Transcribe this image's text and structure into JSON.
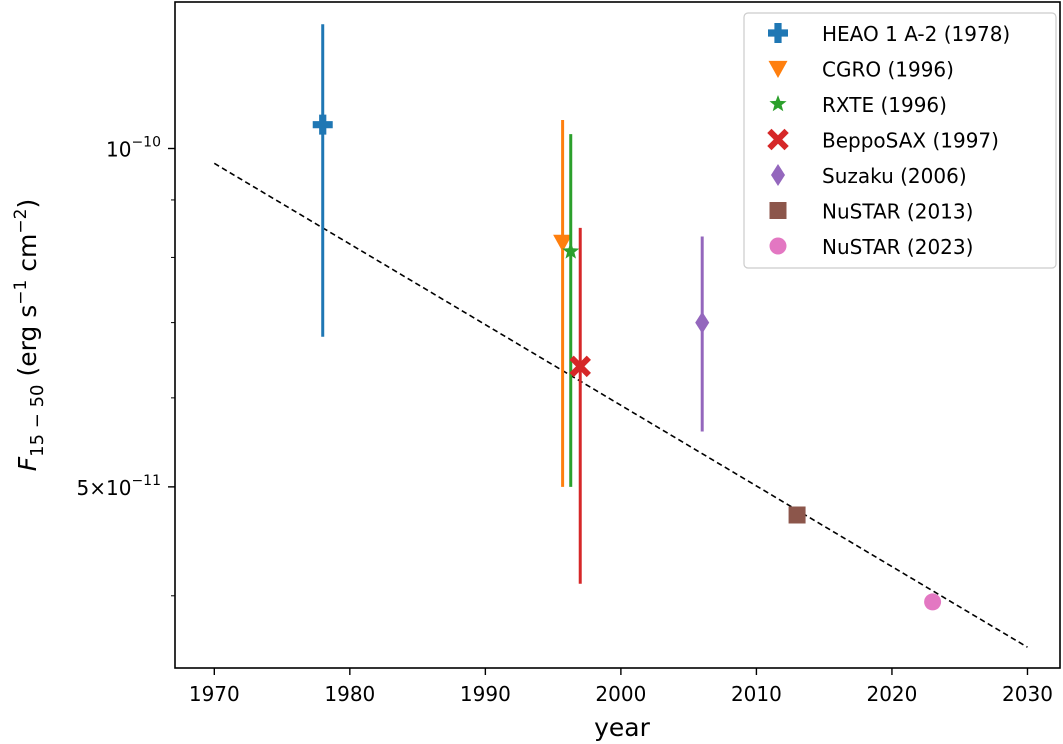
{
  "chart_data": {
    "type": "scatter",
    "title": "",
    "xlabel": "year",
    "ylabel": {
      "main": "F",
      "sub": "15 − 50",
      "units_open": " (erg s",
      "units_exp1": "−1",
      "units_mid": " cm",
      "units_exp2": "−2",
      "units_close": ")"
    },
    "xlim": [
      1967.1,
      2032.4
    ],
    "ylim": [
      3.45e-11,
      1.35e-10
    ],
    "yscale": "log",
    "grid": false,
    "legend_position": "top-right",
    "x_ticks": [
      {
        "value": 1970,
        "label": "1970"
      },
      {
        "value": 1980,
        "label": "1980"
      },
      {
        "value": 1990,
        "label": "1990"
      },
      {
        "value": 2000,
        "label": "2000"
      },
      {
        "value": 2010,
        "label": "2010"
      },
      {
        "value": 2020,
        "label": "2020"
      },
      {
        "value": 2030,
        "label": "2030"
      }
    ],
    "y_ticks": [
      {
        "value": 1e-10,
        "mantissa": "",
        "base": "10",
        "exponent": "−10"
      },
      {
        "value": 5e-11,
        "mantissa": "5×",
        "base": "10",
        "exponent": "−11"
      }
    ],
    "trend_line": {
      "style": "dashed",
      "color": "#000000",
      "x": [
        1970,
        2030
      ],
      "y": [
        9.7e-11,
        3.6e-11
      ]
    },
    "series": [
      {
        "name": "HEAO 1 A-2 (1978)",
        "marker": "plus",
        "color": "#1f77b4",
        "x": 1978.0,
        "y": 1.05e-10,
        "yerr_low": 6.8e-11,
        "yerr_high": 1.29e-10
      },
      {
        "name": "CGRO (1996)",
        "marker": "triangle-down",
        "color": "#ff7f0e",
        "x": 1995.7,
        "y": 8.25e-11,
        "yerr_low": 5e-11,
        "yerr_high": 1.06e-10
      },
      {
        "name": "RXTE (1996)",
        "marker": "star",
        "color": "#2ca02c",
        "x": 1996.3,
        "y": 8.1e-11,
        "yerr_low": 5e-11,
        "yerr_high": 1.03e-10
      },
      {
        "name": "BeppoSAX (1997)",
        "marker": "x-filled",
        "color": "#d62728",
        "x": 1997.0,
        "y": 6.4e-11,
        "yerr_low": 4.1e-11,
        "yerr_high": 8.5e-11
      },
      {
        "name": "Suzaku (2006)",
        "marker": "diamond-thin",
        "color": "#9467bd",
        "x": 2006.0,
        "y": 7e-11,
        "yerr_low": 5.6e-11,
        "yerr_high": 8.35e-11
      },
      {
        "name": "NuSTAR (2013)",
        "marker": "square",
        "color": "#8c564b",
        "x": 2013.0,
        "y": 4.72e-11
      },
      {
        "name": "NuSTAR (2023)",
        "marker": "circle",
        "color": "#e377c2",
        "x": 2023.0,
        "y": 3.95e-11
      }
    ]
  }
}
